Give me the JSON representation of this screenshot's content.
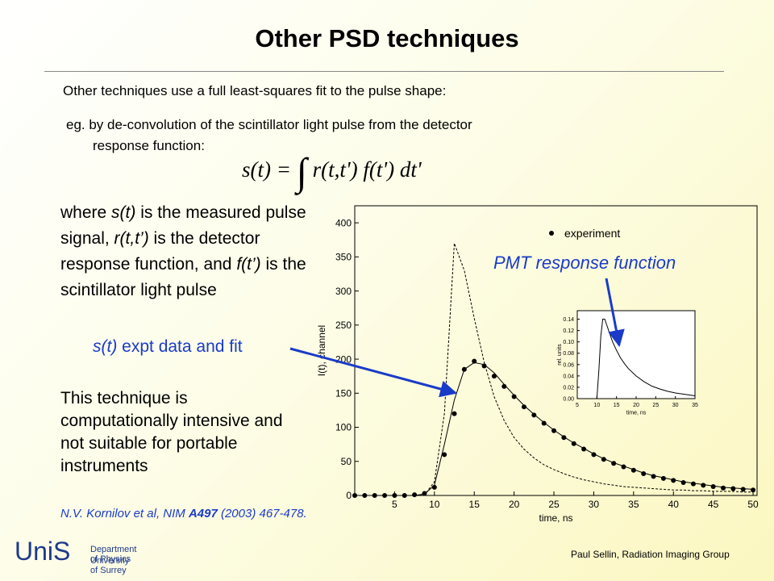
{
  "title": "Other PSD techniques",
  "intro": "Other techniques use a full least-squares fit to the pulse shape:",
  "example": [
    "eg. by de-convolution of the scintillator light pulse from the detector",
    "response function:"
  ],
  "equation": {
    "lhs": "s(t) =",
    "rhs": "r(t,t') f(t') dt'"
  },
  "description": [
    "where ",
    "s(t)",
    " is the measured pulse signal, ",
    "r(t,t’)",
    " is the detector response function, and ",
    "f(t’)",
    " is the scintillator light pulse"
  ],
  "fit_label": [
    "s(t)",
    " expt data and fit"
  ],
  "pmt_label": "PMT response function",
  "conclusion": "This technique is computationally intensive and not suitable for portable instruments",
  "citation": [
    "N.V. Kornilov et al, NIM ",
    "A497",
    " (2003) 467-478."
  ],
  "logo": {
    "mark": "UniS",
    "line1": "Department of Physics",
    "line2": "University of Surrey"
  },
  "footer": "Paul Sellin, Radiation Imaging Group",
  "chart_data": [
    {
      "type": "line",
      "xlabel": "time, ns",
      "ylabel": "I(t), channel",
      "xlim": [
        0,
        50.5
      ],
      "ylim": [
        0,
        425
      ],
      "xticks": [
        5,
        10,
        15,
        20,
        25,
        30,
        35,
        40,
        45,
        50
      ],
      "yticks": [
        0,
        50,
        100,
        150,
        200,
        250,
        300,
        350,
        400
      ],
      "legend": "upper right",
      "x": [
        0,
        1.25,
        2.5,
        3.75,
        5,
        6.25,
        7.5,
        8.75,
        10,
        11.25,
        12.5,
        13.75,
        15,
        16.25,
        17.5,
        18.75,
        20,
        21.25,
        22.5,
        23.75,
        25,
        26.25,
        27.5,
        28.75,
        30,
        31.25,
        32.5,
        33.75,
        35,
        36.25,
        37.5,
        38.75,
        40,
        41.25,
        42.5,
        43.75,
        45,
        46.25,
        47.5,
        48.75,
        50
      ],
      "series": [
        {
          "name": "experiment",
          "color": "#000000",
          "style": "markers",
          "values": [
            0,
            0,
            0,
            0,
            0,
            0,
            1,
            3,
            12,
            60,
            120,
            185,
            197,
            190,
            175,
            160,
            145,
            130,
            118,
            106,
            95,
            85,
            76,
            68,
            60,
            53,
            47,
            42,
            37,
            32,
            28,
            25,
            22,
            19,
            17,
            15,
            13,
            11,
            10,
            9,
            8
          ]
        },
        {
          "color": "#000000",
          "style": "solid",
          "values": [
            0,
            0,
            0,
            0,
            0,
            0,
            0,
            2,
            15,
            75,
            140,
            185,
            195,
            192,
            180,
            163,
            147,
            132,
            119,
            107,
            96,
            86,
            77,
            69,
            61,
            54,
            48,
            43,
            38,
            33,
            29,
            26,
            23,
            20,
            18,
            16,
            14,
            12,
            11,
            10,
            9
          ]
        },
        {
          "color": "#000000",
          "style": "dashed",
          "values": [
            0,
            0,
            0,
            0,
            0,
            0,
            0,
            1,
            20,
            120,
            370,
            330,
            260,
            195,
            145,
            110,
            85,
            68,
            55,
            45,
            38,
            32,
            27,
            23,
            20,
            17,
            15,
            13,
            12,
            11,
            10,
            9,
            8,
            8,
            7,
            7,
            6,
            6,
            6,
            5,
            5
          ]
        }
      ]
    },
    {
      "type": "line",
      "xlabel": "time, ns",
      "ylabel": "rel. units",
      "xlim": [
        5,
        35
      ],
      "ylim": [
        0,
        0.155
      ],
      "xticks": [
        5,
        10,
        15,
        20,
        25,
        30,
        35
      ],
      "yticks": [
        {
          "value": 0,
          "label": "0.00"
        },
        {
          "value": 0.02,
          "label": "0.02"
        },
        {
          "value": 0.04,
          "label": "0.04"
        },
        {
          "value": 0.06,
          "label": "0.06"
        },
        {
          "value": 0.08,
          "label": "0.08"
        },
        {
          "value": 0.1,
          "label": "0.10"
        },
        {
          "value": 0.12,
          "label": "0.12"
        },
        {
          "value": 0.14,
          "label": "0.14"
        }
      ],
      "x": [
        5,
        7,
        9,
        10,
        10.5,
        11,
        11.5,
        12,
        12.5,
        13,
        14,
        15,
        16,
        17,
        18,
        20,
        22,
        24,
        26,
        28,
        30,
        32,
        35
      ],
      "series": [
        {
          "color": "#000000",
          "style": "solid",
          "values": [
            0,
            0,
            0,
            0,
            0.05,
            0.11,
            0.14,
            0.14,
            0.13,
            0.12,
            0.1,
            0.085,
            0.072,
            0.062,
            0.053,
            0.04,
            0.03,
            0.022,
            0.017,
            0.013,
            0.01,
            0.008,
            0.005
          ]
        }
      ]
    }
  ]
}
